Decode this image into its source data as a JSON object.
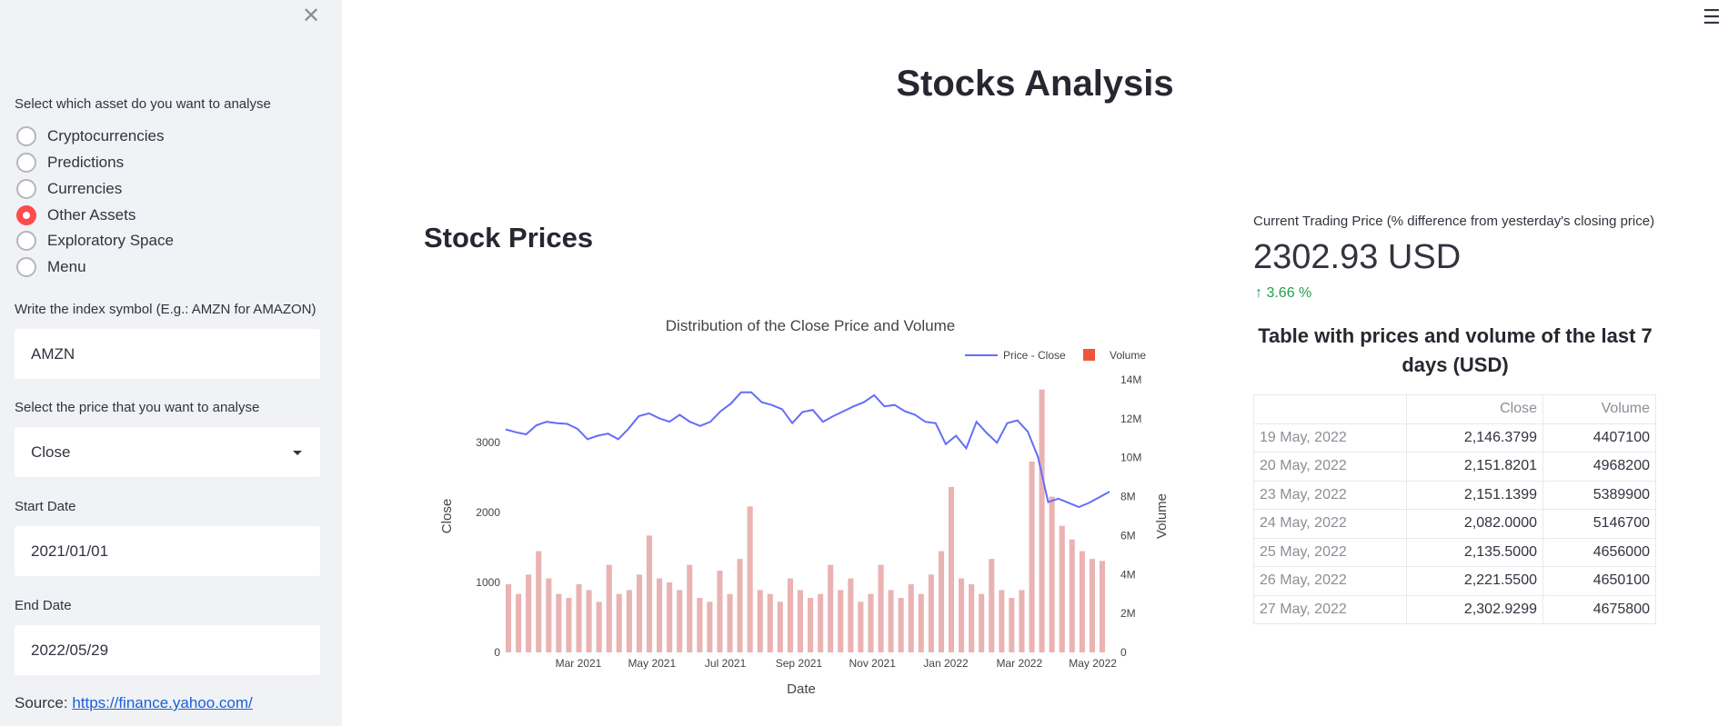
{
  "sidebar": {
    "asset_question": "Select which asset do you want to analyse",
    "assets": [
      {
        "label": "Cryptocurrencies",
        "selected": false
      },
      {
        "label": "Predictions",
        "selected": false
      },
      {
        "label": "Currencies",
        "selected": false
      },
      {
        "label": "Other Assets",
        "selected": true
      },
      {
        "label": "Exploratory Space",
        "selected": false
      },
      {
        "label": "Menu",
        "selected": false
      }
    ],
    "symbol_label": "Write the index symbol (E.g.: AMZN for AMAZON)",
    "symbol_value": "AMZN",
    "price_label": "Select the price that you want to analyse",
    "price_value": "Close",
    "start_label": "Start Date",
    "start_value": "2021/01/01",
    "end_label": "End Date",
    "end_value": "2022/05/29",
    "source_prefix": "Source: ",
    "source_link": "https://finance.yahoo.com/"
  },
  "main": {
    "title": "Stocks Analysis",
    "section_title": "Stock Prices",
    "metric_label": "Current Trading Price (% difference from yesterday's closing price)",
    "metric_value": "2302.93 USD",
    "metric_delta": "3.66 %",
    "table_title": "Table with prices and volume of the last 7 days (USD)",
    "table_headers": [
      "",
      "Close",
      "Volume"
    ],
    "table_rows": [
      [
        "19 May, 2022",
        "2,146.3799",
        "4407100"
      ],
      [
        "20 May, 2022",
        "2,151.8201",
        "4968200"
      ],
      [
        "23 May, 2022",
        "2,151.1399",
        "5389900"
      ],
      [
        "24 May, 2022",
        "2,082.0000",
        "5146700"
      ],
      [
        "25 May, 2022",
        "2,135.5000",
        "4656000"
      ],
      [
        "26 May, 2022",
        "2,221.5500",
        "4650100"
      ],
      [
        "27 May, 2022",
        "2,302.9299",
        "4675800"
      ]
    ]
  },
  "colors": {
    "accent": "#ff4b4b",
    "price_line": "#636efa",
    "volume_bar": "#e6a6a6",
    "volume_legend": "#ef553b",
    "delta_green": "#21a04d"
  },
  "chart_data": {
    "type": "line",
    "title": "Distribution of the Close Price and Volume",
    "xlabel": "Date",
    "ylabel": "Close",
    "y2label": "Volume",
    "legend": [
      "Price - Close",
      "Volume"
    ],
    "legend_placement": "top-right",
    "x_ticks": [
      "Mar 2021",
      "May 2021",
      "Jul 2021",
      "Sep 2021",
      "Nov 2021",
      "Jan 2022",
      "Mar 2022",
      "May 2022"
    ],
    "y_ticks": [
      "0",
      "1000",
      "2000",
      "3000"
    ],
    "y2_ticks": [
      "0",
      "2M",
      "4M",
      "6M",
      "8M",
      "10M",
      "12M",
      "14M"
    ],
    "ylim": [
      0,
      3900
    ],
    "y2lim": [
      0,
      14000000
    ],
    "price_series": [
      3190,
      3150,
      3120,
      3250,
      3300,
      3280,
      3270,
      3200,
      3050,
      3100,
      3130,
      3050,
      3200,
      3380,
      3420,
      3350,
      3300,
      3400,
      3300,
      3240,
      3300,
      3450,
      3560,
      3720,
      3720,
      3580,
      3540,
      3480,
      3280,
      3440,
      3470,
      3300,
      3380,
      3450,
      3520,
      3580,
      3680,
      3520,
      3540,
      3450,
      3400,
      3300,
      3280,
      2980,
      3100,
      2920,
      3300,
      3140,
      3000,
      3280,
      3320,
      3160,
      2800,
      2150,
      2200,
      2140,
      2080,
      2140,
      2220,
      2300
    ],
    "volume_series": [
      3.5,
      3.0,
      4.0,
      5.2,
      3.8,
      3.0,
      2.8,
      3.5,
      3.2,
      2.6,
      4.5,
      3.0,
      3.2,
      4.0,
      6.0,
      3.8,
      3.6,
      3.2,
      4.5,
      2.8,
      2.6,
      4.2,
      3.0,
      4.8,
      7.5,
      3.2,
      3.0,
      2.6,
      3.8,
      3.2,
      2.8,
      3.0,
      4.5,
      3.2,
      3.8,
      2.6,
      3.0,
      4.5,
      3.2,
      2.8,
      3.5,
      3.0,
      4.0,
      5.2,
      8.5,
      3.8,
      3.5,
      3.0,
      4.8,
      3.2,
      2.8,
      3.2,
      9.8,
      13.5,
      8.0,
      6.5,
      5.8,
      5.2,
      4.8,
      4.7
    ]
  }
}
